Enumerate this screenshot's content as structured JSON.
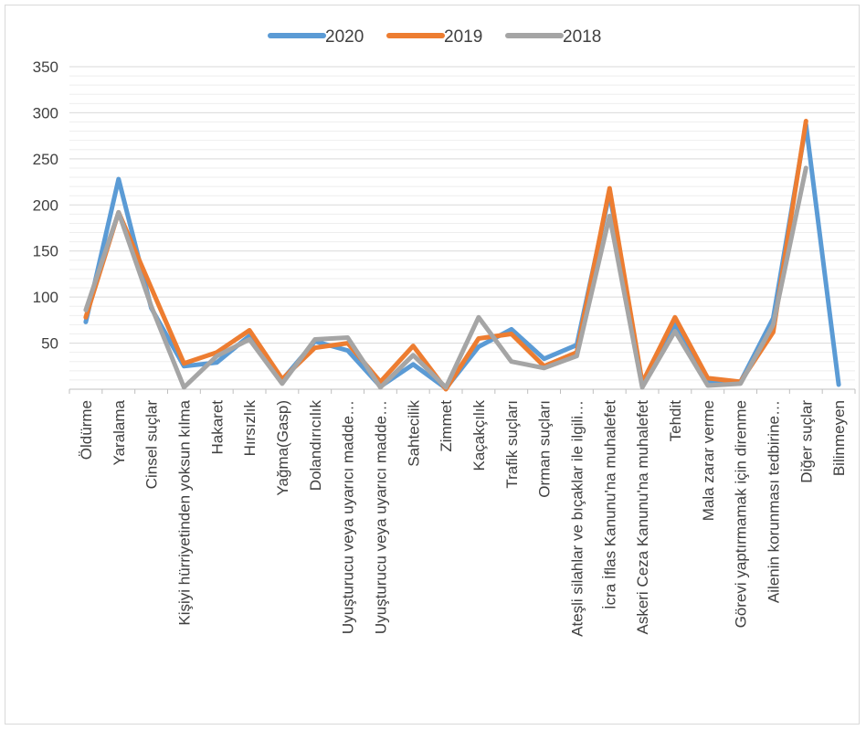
{
  "chart_data": {
    "type": "line",
    "title": "",
    "xlabel": "",
    "ylabel": "",
    "ylim": [
      0,
      350
    ],
    "yticks": [
      50,
      100,
      150,
      200,
      250,
      300,
      350
    ],
    "grid": true,
    "legend_position": "top",
    "categories": [
      "Öldürme",
      "Yaralama",
      "Cinsel suçlar",
      "Kişiyi hürriyetinden yoksun kılma",
      "Hakaret",
      "Hırsızlık",
      "Yağma(Gasp)",
      "Dolandırıcılık",
      "Uyuşturucu veya uyarıcı madde…",
      "Uyuşturucu veya uyarıcı madde…",
      "Sahtecilik",
      "Zimmet",
      "Kaçakçılık",
      "Trafik suçları",
      "Orman suçları",
      "Ateşli silahlar ve bıçaklar ile ilgili…",
      "İcra İflas Kanunu'na muhalefet",
      "Askeri Ceza Kanunu'na muhalefet",
      "Tehdit",
      "Mala zarar verme",
      "Görevi yaptırmamak için direnme",
      "Ailenin korunması tedbirine…",
      "Diğer suçlar",
      "Bilinmeyen"
    ],
    "series": [
      {
        "name": "2020",
        "color": "#5b9bd5",
        "values": [
          73,
          228,
          88,
          25,
          29,
          58,
          10,
          52,
          42,
          3,
          27,
          1,
          46,
          65,
          33,
          48,
          213,
          3,
          70,
          9,
          8,
          77,
          287,
          5
        ]
      },
      {
        "name": "2019",
        "color": "#ed7d31",
        "values": [
          78,
          192,
          110,
          28,
          40,
          64,
          11,
          45,
          50,
          8,
          47,
          0,
          55,
          60,
          25,
          40,
          218,
          7,
          78,
          12,
          8,
          62,
          291,
          null
        ]
      },
      {
        "name": "2018",
        "color": "#a5a5a5",
        "values": [
          86,
          192,
          90,
          2,
          36,
          54,
          6,
          54,
          56,
          2,
          37,
          2,
          78,
          30,
          23,
          36,
          188,
          2,
          63,
          4,
          6,
          70,
          240,
          null
        ]
      }
    ]
  }
}
